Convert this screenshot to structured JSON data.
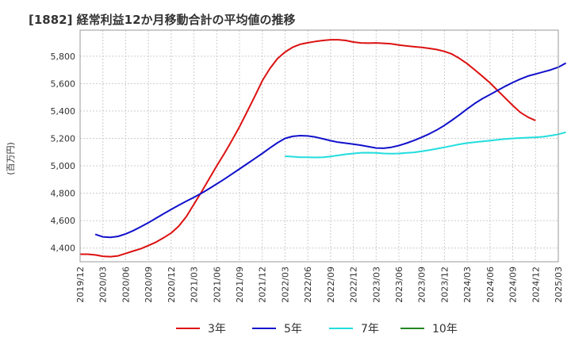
{
  "chart_data": {
    "type": "line",
    "title": "[1882]  経常利益12か月移動合計の平均値の推移",
    "ylabel": "(百万円)",
    "xlabel": "",
    "ylim": [
      4300,
      5990
    ],
    "yticks": [
      4400,
      4600,
      4800,
      5000,
      5200,
      5400,
      5600,
      5800
    ],
    "ytick_labels": [
      "4,400",
      "4,600",
      "4,800",
      "5,000",
      "5,200",
      "5,400",
      "5,600",
      "5,800"
    ],
    "xticks": [
      "2019/12",
      "2020/03",
      "2020/06",
      "2020/09",
      "2020/12",
      "2021/03",
      "2021/06",
      "2021/09",
      "2021/12",
      "2022/03",
      "2022/06",
      "2022/09",
      "2022/12",
      "2023/03",
      "2023/06",
      "2023/09",
      "2023/12",
      "2024/03",
      "2024/06",
      "2024/09",
      "2024/12",
      "2025/03"
    ],
    "grid": true,
    "legend_position": "bottom",
    "series": [
      {
        "name": "3年",
        "color": "#dd1111",
        "points": [
          [
            "2019/12",
            4355
          ],
          [
            "2020/01",
            4355
          ],
          [
            "2020/02",
            4350
          ],
          [
            "2020/03",
            4340
          ],
          [
            "2020/04",
            4337
          ],
          [
            "2020/05",
            4343
          ],
          [
            "2020/06",
            4360
          ],
          [
            "2020/07",
            4378
          ],
          [
            "2020/08",
            4395
          ],
          [
            "2020/09",
            4418
          ],
          [
            "2020/10",
            4443
          ],
          [
            "2020/11",
            4475
          ],
          [
            "2020/12",
            4510
          ],
          [
            "2021/01",
            4560
          ],
          [
            "2021/02",
            4630
          ],
          [
            "2021/03",
            4720
          ],
          [
            "2021/04",
            4810
          ],
          [
            "2021/05",
            4905
          ],
          [
            "2021/06",
            5000
          ],
          [
            "2021/07",
            5090
          ],
          [
            "2021/08",
            5185
          ],
          [
            "2021/09",
            5285
          ],
          [
            "2021/10",
            5395
          ],
          [
            "2021/11",
            5505
          ],
          [
            "2021/12",
            5620
          ],
          [
            "2022/01",
            5710
          ],
          [
            "2022/02",
            5782
          ],
          [
            "2022/03",
            5830
          ],
          [
            "2022/04",
            5865
          ],
          [
            "2022/05",
            5887
          ],
          [
            "2022/06",
            5898
          ],
          [
            "2022/07",
            5907
          ],
          [
            "2022/08",
            5915
          ],
          [
            "2022/09",
            5920
          ],
          [
            "2022/10",
            5920
          ],
          [
            "2022/11",
            5915
          ],
          [
            "2022/12",
            5903
          ],
          [
            "2023/01",
            5897
          ],
          [
            "2023/02",
            5895
          ],
          [
            "2023/03",
            5897
          ],
          [
            "2023/04",
            5894
          ],
          [
            "2023/05",
            5890
          ],
          [
            "2023/06",
            5882
          ],
          [
            "2023/07",
            5875
          ],
          [
            "2023/08",
            5869
          ],
          [
            "2023/09",
            5864
          ],
          [
            "2023/10",
            5857
          ],
          [
            "2023/11",
            5848
          ],
          [
            "2023/12",
            5835
          ],
          [
            "2024/01",
            5815
          ],
          [
            "2024/02",
            5783
          ],
          [
            "2024/03",
            5745
          ],
          [
            "2024/04",
            5700
          ],
          [
            "2024/05",
            5653
          ],
          [
            "2024/06",
            5605
          ],
          [
            "2024/07",
            5550
          ],
          [
            "2024/08",
            5495
          ],
          [
            "2024/09",
            5440
          ],
          [
            "2024/10",
            5390
          ],
          [
            "2024/11",
            5355
          ],
          [
            "2024/12",
            5330
          ]
        ]
      },
      {
        "name": "5年",
        "color": "#1111cc",
        "points": [
          [
            "2020/02",
            4500
          ],
          [
            "2020/03",
            4482
          ],
          [
            "2020/04",
            4478
          ],
          [
            "2020/05",
            4485
          ],
          [
            "2020/06",
            4503
          ],
          [
            "2020/07",
            4527
          ],
          [
            "2020/08",
            4555
          ],
          [
            "2020/09",
            4585
          ],
          [
            "2020/10",
            4618
          ],
          [
            "2020/11",
            4650
          ],
          [
            "2020/12",
            4682
          ],
          [
            "2021/01",
            4712
          ],
          [
            "2021/02",
            4742
          ],
          [
            "2021/03",
            4770
          ],
          [
            "2021/04",
            4800
          ],
          [
            "2021/05",
            4833
          ],
          [
            "2021/06",
            4868
          ],
          [
            "2021/07",
            4903
          ],
          [
            "2021/08",
            4940
          ],
          [
            "2021/09",
            4977
          ],
          [
            "2021/10",
            5015
          ],
          [
            "2021/11",
            5052
          ],
          [
            "2021/12",
            5090
          ],
          [
            "2022/01",
            5130
          ],
          [
            "2022/02",
            5168
          ],
          [
            "2022/03",
            5200
          ],
          [
            "2022/04",
            5215
          ],
          [
            "2022/05",
            5220
          ],
          [
            "2022/06",
            5218
          ],
          [
            "2022/07",
            5210
          ],
          [
            "2022/08",
            5197
          ],
          [
            "2022/09",
            5183
          ],
          [
            "2022/10",
            5172
          ],
          [
            "2022/11",
            5165
          ],
          [
            "2022/12",
            5158
          ],
          [
            "2023/01",
            5150
          ],
          [
            "2023/02",
            5140
          ],
          [
            "2023/03",
            5130
          ],
          [
            "2023/04",
            5128
          ],
          [
            "2023/05",
            5135
          ],
          [
            "2023/06",
            5148
          ],
          [
            "2023/07",
            5165
          ],
          [
            "2023/08",
            5185
          ],
          [
            "2023/09",
            5208
          ],
          [
            "2023/10",
            5233
          ],
          [
            "2023/11",
            5262
          ],
          [
            "2023/12",
            5295
          ],
          [
            "2024/01",
            5333
          ],
          [
            "2024/02",
            5373
          ],
          [
            "2024/03",
            5415
          ],
          [
            "2024/04",
            5455
          ],
          [
            "2024/05",
            5490
          ],
          [
            "2024/06",
            5520
          ],
          [
            "2024/07",
            5550
          ],
          [
            "2024/08",
            5580
          ],
          [
            "2024/09",
            5608
          ],
          [
            "2024/10",
            5633
          ],
          [
            "2024/11",
            5655
          ],
          [
            "2024/12",
            5670
          ],
          [
            "2025/01",
            5685
          ],
          [
            "2025/02",
            5700
          ],
          [
            "2025/03",
            5720
          ],
          [
            "2025/04",
            5750
          ]
        ]
      },
      {
        "name": "7年",
        "color": "#22dddd",
        "points": [
          [
            "2022/03",
            5070
          ],
          [
            "2022/04",
            5067
          ],
          [
            "2022/05",
            5063
          ],
          [
            "2022/06",
            5062
          ],
          [
            "2022/07",
            5061
          ],
          [
            "2022/08",
            5063
          ],
          [
            "2022/09",
            5068
          ],
          [
            "2022/10",
            5076
          ],
          [
            "2022/11",
            5084
          ],
          [
            "2022/12",
            5090
          ],
          [
            "2023/01",
            5095
          ],
          [
            "2023/02",
            5096
          ],
          [
            "2023/03",
            5094
          ],
          [
            "2023/04",
            5090
          ],
          [
            "2023/05",
            5088
          ],
          [
            "2023/06",
            5090
          ],
          [
            "2023/07",
            5094
          ],
          [
            "2023/08",
            5098
          ],
          [
            "2023/09",
            5106
          ],
          [
            "2023/10",
            5115
          ],
          [
            "2023/11",
            5125
          ],
          [
            "2023/12",
            5135
          ],
          [
            "2024/01",
            5146
          ],
          [
            "2024/02",
            5157
          ],
          [
            "2024/03",
            5166
          ],
          [
            "2024/04",
            5172
          ],
          [
            "2024/05",
            5178
          ],
          [
            "2024/06",
            5184
          ],
          [
            "2024/07",
            5190
          ],
          [
            "2024/08",
            5196
          ],
          [
            "2024/09",
            5200
          ],
          [
            "2024/10",
            5203
          ],
          [
            "2024/11",
            5206
          ],
          [
            "2024/12",
            5208
          ],
          [
            "2025/01",
            5212
          ],
          [
            "2025/02",
            5220
          ],
          [
            "2025/03",
            5230
          ],
          [
            "2025/04",
            5245
          ]
        ]
      },
      {
        "name": "10年",
        "color": "#228822",
        "points": []
      }
    ]
  }
}
